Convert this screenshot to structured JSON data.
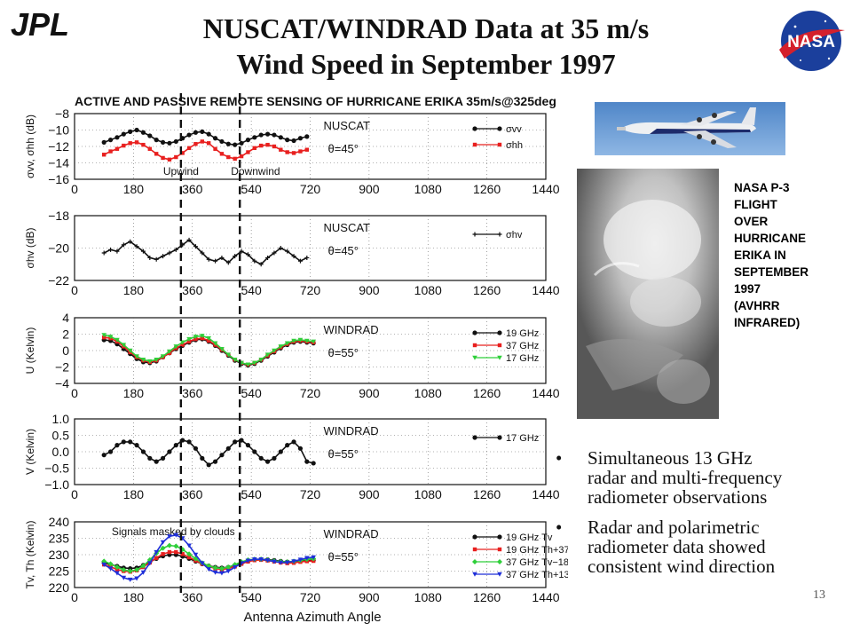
{
  "slide": {
    "title_line1": "NUSCAT/WINDRAD Data at 35 m/s",
    "title_line2": "Wind Speed in September 1997",
    "logo_left": "JPL",
    "logo_right": "NASA",
    "page_number": "13"
  },
  "caption": {
    "lines": [
      "NASA P-3",
      "FLIGHT",
      "OVER",
      "HURRICANE",
      "ERIKA IN",
      "SEPTEMBER",
      "1997",
      "(AVHRR",
      "INFRARED)"
    ]
  },
  "bullets": [
    {
      "lines": [
        "Simultaneous 13 GHz",
        "radar and multi-frequency",
        "radiometer observations"
      ]
    },
    {
      "lines": [
        "Radar and polarimetric",
        "radiometer data showed",
        "consistent wind direction"
      ]
    }
  ],
  "icons": {
    "plane": "aircraft-photo",
    "satellite": "satellite-infrared-image",
    "bullet": "bullet-dot-icon"
  },
  "colors": {
    "black": "#111111",
    "red": "#e8201f",
    "green": "#2fcf3a",
    "blue": "#1f2fd8"
  },
  "chart_data": {
    "figure_title": "ACTIVE AND PASSIVE REMOTE SENSING OF HURRICANE ERIKA 35m/s@325deg",
    "xlabel": "Antenna Azimuth Angle",
    "x_ticks": [
      "0",
      "180",
      "360",
      "540",
      "720",
      "900",
      "1080",
      "1260",
      "1440"
    ],
    "xlim": [
      0,
      1440
    ],
    "grid": true,
    "dashed_lines": [
      {
        "x": 325,
        "label": "Upwind"
      },
      {
        "x": 505,
        "label": "Downwind"
      }
    ],
    "panels": [
      {
        "type": "line",
        "ylabel": "σvv, σhh (dB)",
        "y_ticks": [
          "−8",
          "−10",
          "−12",
          "−14",
          "−16"
        ],
        "ylim": [
          -16,
          -8
        ],
        "instrument": "NUSCAT",
        "angle": "θ=45°",
        "series": [
          {
            "name": "σvv",
            "color": "black",
            "marker": "dot",
            "x_start": 90,
            "x_end": 720,
            "x_step": 20,
            "values": [
              -11.5,
              -11.2,
              -10.9,
              -10.5,
              -10.2,
              -10.0,
              -10.3,
              -10.7,
              -11.2,
              -11.5,
              -11.6,
              -11.4,
              -11.0,
              -10.6,
              -10.3,
              -10.2,
              -10.5,
              -11.0,
              -11.4,
              -11.7,
              -11.8,
              -11.6,
              -11.2,
              -10.9,
              -10.6,
              -10.5,
              -10.6,
              -10.9,
              -11.2,
              -11.3,
              -11.0,
              -10.8
            ]
          },
          {
            "name": "σhh",
            "color": "red",
            "marker": "square",
            "x_start": 90,
            "x_end": 720,
            "x_step": 20,
            "values": [
              -13.0,
              -12.6,
              -12.3,
              -11.9,
              -11.6,
              -11.5,
              -11.8,
              -12.3,
              -12.9,
              -13.4,
              -13.6,
              -13.3,
              -12.8,
              -12.2,
              -11.7,
              -11.4,
              -11.6,
              -12.3,
              -12.9,
              -13.3,
              -13.5,
              -13.2,
              -12.7,
              -12.2,
              -11.9,
              -11.8,
              -12.0,
              -12.4,
              -12.7,
              -12.8,
              -12.6,
              -12.4
            ]
          }
        ]
      },
      {
        "type": "line",
        "ylabel": "σhv (dB)",
        "y_ticks": [
          "−18",
          "−20",
          "−22"
        ],
        "ylim": [
          -22,
          -18
        ],
        "instrument": "NUSCAT",
        "angle": "θ=45°",
        "series": [
          {
            "name": "σhv",
            "color": "black",
            "marker": "cross",
            "x_start": 90,
            "x_end": 720,
            "x_step": 20,
            "values": [
              -20.3,
              -20.1,
              -20.2,
              -19.8,
              -19.6,
              -19.9,
              -20.2,
              -20.6,
              -20.7,
              -20.5,
              -20.3,
              -20.1,
              -19.8,
              -19.5,
              -19.9,
              -20.3,
              -20.7,
              -20.8,
              -20.6,
              -20.9,
              -20.5,
              -20.2,
              -20.4,
              -20.8,
              -21.0,
              -20.6,
              -20.3,
              -20.0,
              -20.2,
              -20.5,
              -20.8,
              -20.6
            ]
          }
        ]
      },
      {
        "type": "line",
        "ylabel": "U (Kelvin)",
        "y_ticks": [
          "4",
          "2",
          "0",
          "−2",
          "−4"
        ],
        "ylim": [
          -4,
          4
        ],
        "instrument": "WINDRAD",
        "angle": "θ=55°",
        "series": [
          {
            "name": "19 GHz",
            "color": "black",
            "marker": "dot",
            "x_start": 90,
            "x_end": 740,
            "x_step": 20,
            "values": [
              1.3,
              1.2,
              0.8,
              0.2,
              -0.4,
              -1.0,
              -1.4,
              -1.5,
              -1.3,
              -0.8,
              -0.3,
              0.2,
              0.6,
              1.0,
              1.3,
              1.4,
              1.1,
              0.6,
              0.0,
              -0.6,
              -1.2,
              -1.6,
              -1.8,
              -1.6,
              -1.2,
              -0.7,
              -0.2,
              0.3,
              0.7,
              1.0,
              1.1,
              1.0,
              0.9
            ]
          },
          {
            "name": "37 GHz",
            "color": "red",
            "marker": "square",
            "x_start": 90,
            "x_end": 740,
            "x_step": 20,
            "values": [
              1.6,
              1.5,
              1.1,
              0.5,
              -0.2,
              -0.8,
              -1.2,
              -1.4,
              -1.2,
              -0.8,
              -0.3,
              0.3,
              0.7,
              1.1,
              1.4,
              1.5,
              1.2,
              0.7,
              0.1,
              -0.5,
              -1.1,
              -1.5,
              -1.7,
              -1.5,
              -1.1,
              -0.6,
              -0.1,
              0.4,
              0.8,
              1.1,
              1.2,
              1.1,
              1.0
            ]
          },
          {
            "name": "17 GHz",
            "color": "green",
            "marker": "triangle",
            "x_start": 90,
            "x_end": 740,
            "x_step": 20,
            "values": [
              1.9,
              1.7,
              1.3,
              0.7,
              0.0,
              -0.7,
              -1.1,
              -1.3,
              -1.1,
              -0.7,
              -0.1,
              0.5,
              1.0,
              1.4,
              1.7,
              1.8,
              1.5,
              0.9,
              0.2,
              -0.5,
              -1.1,
              -1.5,
              -1.7,
              -1.5,
              -1.1,
              -0.5,
              0.0,
              0.5,
              0.9,
              1.2,
              1.3,
              1.2,
              1.1
            ]
          }
        ]
      },
      {
        "type": "line",
        "ylabel": "V (Kelvin)",
        "y_ticks": [
          "1.0",
          "0.5",
          "0.0",
          "−0.5",
          "−1.0"
        ],
        "ylim": [
          -1,
          1
        ],
        "instrument": "WINDRAD",
        "angle": "θ=55°",
        "series": [
          {
            "name": "17 GHz",
            "color": "black",
            "marker": "dot",
            "x_start": 90,
            "x_end": 740,
            "x_step": 20,
            "values": [
              -0.1,
              0.0,
              0.2,
              0.3,
              0.3,
              0.2,
              0.0,
              -0.2,
              -0.3,
              -0.2,
              0.0,
              0.2,
              0.35,
              0.3,
              0.1,
              -0.2,
              -0.4,
              -0.3,
              -0.1,
              0.1,
              0.3,
              0.35,
              0.2,
              0.0,
              -0.2,
              -0.3,
              -0.2,
              0.0,
              0.2,
              0.3,
              0.1,
              -0.3,
              -0.35
            ]
          }
        ]
      },
      {
        "type": "line",
        "ylabel": "Tv, Th (Kelvin)",
        "y_ticks": [
          "240",
          "235",
          "230",
          "225",
          "220"
        ],
        "ylim": [
          220,
          240
        ],
        "instrument": "WINDRAD",
        "angle": "θ=55°",
        "annotation": "Signals masked by clouds",
        "series": [
          {
            "name": "19 GHz Tv",
            "color": "black",
            "marker": "dot",
            "x_start": 90,
            "x_end": 740,
            "x_step": 20,
            "values": [
              227.5,
              227.0,
              226.5,
              226.0,
              225.8,
              226.0,
              226.8,
              227.8,
              228.8,
              229.6,
              230.0,
              230.0,
              229.5,
              228.8,
              228.0,
              227.2,
              226.6,
              226.2,
              226.0,
              226.2,
              226.8,
              227.4,
              228.0,
              228.4,
              228.6,
              228.5,
              228.3,
              228.0,
              227.8,
              227.8,
              228.0,
              228.2,
              228.3
            ]
          },
          {
            "name": "19 GHz Th+37",
            "color": "red",
            "marker": "square",
            "x_start": 90,
            "x_end": 740,
            "x_step": 20,
            "values": [
              227.0,
              226.3,
              225.5,
              225.0,
              224.8,
              225.2,
              226.2,
              227.6,
              229.0,
              230.2,
              230.8,
              230.8,
              230.2,
              229.2,
              228.2,
              227.2,
              226.4,
              225.8,
              225.5,
              225.8,
              226.4,
              227.2,
              227.9,
              228.3,
              228.4,
              228.2,
              227.9,
              227.6,
              227.4,
              227.5,
              227.8,
              228.0,
              228.1
            ]
          },
          {
            "name": "37 GHz Tv−18",
            "color": "green",
            "marker": "diamond",
            "x_start": 90,
            "x_end": 740,
            "x_step": 20,
            "values": [
              228.0,
              227.2,
              226.2,
              225.4,
              225.0,
              225.4,
              226.6,
              228.4,
              230.4,
              232.0,
              232.8,
              232.6,
              231.6,
              230.2,
              228.8,
              227.5,
              226.6,
              226.0,
              225.8,
              226.2,
              227.0,
              227.8,
              228.4,
              228.6,
              228.6,
              228.4,
              228.1,
              227.9,
              227.8,
              228.0,
              228.3,
              228.6,
              228.8
            ]
          },
          {
            "name": "37 GHz Th+13",
            "color": "blue",
            "marker": "triangle",
            "x_start": 90,
            "x_end": 740,
            "x_step": 20,
            "values": [
              227.0,
              225.8,
              224.4,
              223.0,
              222.4,
              222.8,
              224.6,
              227.4,
              230.8,
              233.8,
              235.6,
              236.0,
              235.0,
              232.8,
              230.0,
              227.4,
              225.6,
              224.6,
              224.4,
              225.0,
              226.2,
              227.4,
              228.2,
              228.6,
              228.6,
              228.3,
              227.9,
              227.6,
              227.6,
              228.0,
              228.5,
              229.0,
              229.2
            ]
          }
        ]
      }
    ]
  }
}
